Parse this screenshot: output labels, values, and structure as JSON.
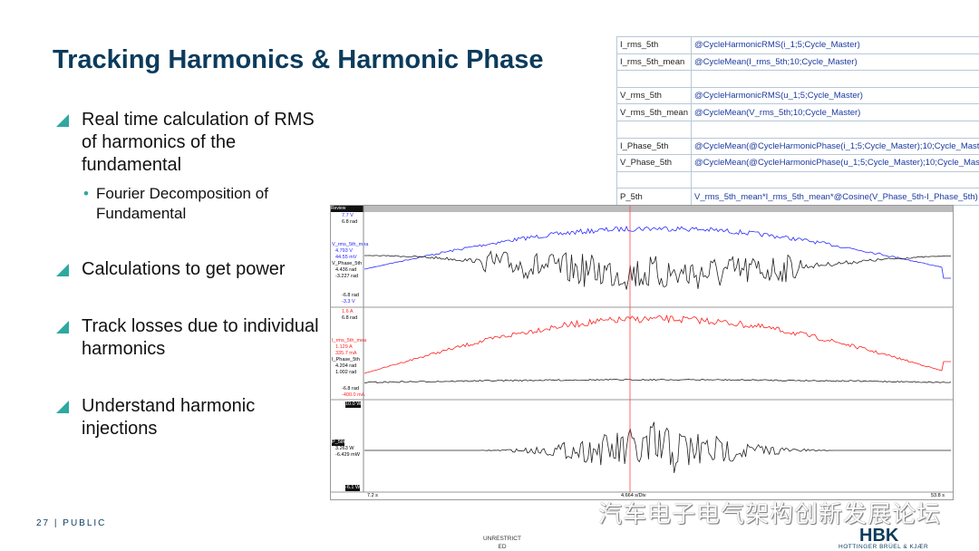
{
  "slide": {
    "title": "Tracking Harmonics & Harmonic Phase",
    "page_number": "27",
    "classification": "PUBLIC",
    "unrestricted": "UNRESTRICT ED",
    "watermark": "汽车电子电气架构创新发展论坛",
    "logo_text": "HBK",
    "logo_subtitle": "HOTTINGER BRÜEL & KJÆR"
  },
  "bullets": [
    {
      "text": "Real time calculation of RMS of harmonics of the fundamental",
      "sub": [
        "Fourier Decomposition of Fundamental"
      ]
    },
    {
      "text": "Calculations to get power"
    },
    {
      "text": "Track losses due to individual harmonics"
    },
    {
      "text": "Understand harmonic injections"
    }
  ],
  "formula_table": [
    [
      "I_rms_5th",
      "@CycleHarmonicRMS(i_1;5;Cycle_Master)"
    ],
    [
      "I_rms_5th_mean",
      "@CycleMean(I_rms_5th;10;Cycle_Master)"
    ],
    [
      "",
      ""
    ],
    [
      "V_rms_5th",
      "@CycleHarmonicRMS(u_1;5;Cycle_Master)"
    ],
    [
      "V_rms_5th_mean",
      "@CycleMean(V_rms_5th;10;Cycle_Master)"
    ],
    [
      "",
      ""
    ],
    [
      "I_Phase_5th",
      "@CycleMean(@CycleHarmonicPhase(i_1;5;Cycle_Master);10;Cycle_Master)"
    ],
    [
      "V_Phase_5th",
      "@CycleMean(@CycleHarmonicPhase(u_1;5;Cycle_Master);10;Cycle_Master)"
    ],
    [
      "",
      ""
    ],
    [
      "P_5th",
      "V_rms_5th_mean*I_rms_5th_mean*@Cosine(V_Phase_5th-I_Phase_5th)"
    ]
  ],
  "chart": {
    "header": "Review",
    "panel1": {
      "top_v": "7.7 V",
      "top_rad": "6.8 rad",
      "ch1": "V_rms_5th_mea",
      "ch1_v1": "4.793 V",
      "ch1_v2": "44.55 mV",
      "ch2": "V_Phase_5th",
      "ch2_v1": "4.436 rad",
      "ch2_v2": "-3.227 rad",
      "bot_rad": "-6.8 rad",
      "bot_v": "-3.3 V"
    },
    "panel2": {
      "top_a": "1.6 A",
      "top_rad": "6.8 rad",
      "ch1": "I_rms_5th_mea",
      "ch1_v1": "1.129 A",
      "ch1_v2": "335.7 mA",
      "ch2": "I_Phase_5th",
      "ch2_v1": "4.204 rad",
      "ch2_v2": "1.002 rad",
      "bot_rad": "-6.8 rad",
      "bot_a": "-400.0 mA"
    },
    "panel3": {
      "top": "10.0 W",
      "ch1": "P_5th",
      "ch1_v1": "3.263 W",
      "ch1_v2": "-6.429 mW",
      "bot": "-6.1 W"
    },
    "x_start": "7.2 s",
    "x_div": "4.664 s/Div",
    "x_end": "53.8 s",
    "colors": {
      "voltage": "#2b2bff",
      "current": "#ff2020",
      "phase": "#222222",
      "cursor": "#ff4040"
    }
  }
}
